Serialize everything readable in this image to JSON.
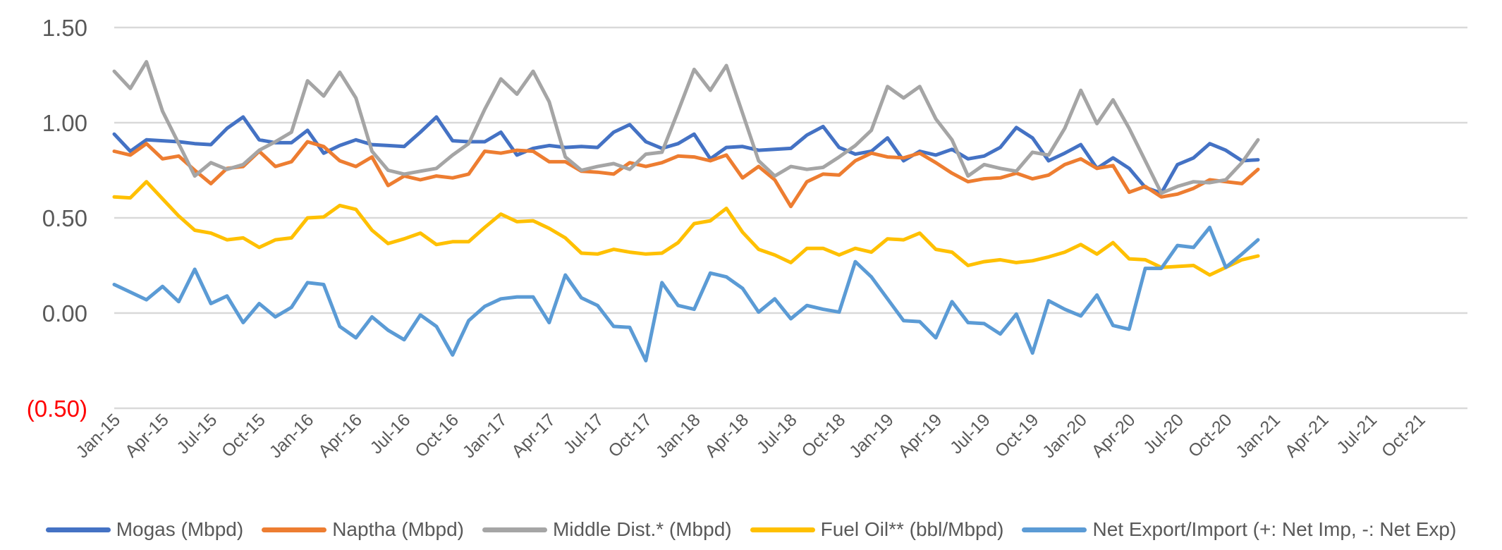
{
  "chart_data": {
    "type": "line",
    "title": "",
    "xlabel": "",
    "ylabel": "",
    "ylim": [
      -0.5,
      1.5
    ],
    "yticks": [
      {
        "value": 1.5,
        "label": "1.50"
      },
      {
        "value": 1.0,
        "label": "1.00"
      },
      {
        "value": 0.5,
        "label": "0.50"
      },
      {
        "value": 0.0,
        "label": "0.00"
      },
      {
        "value": -0.5,
        "label": "(0.50)"
      }
    ],
    "negative_tick_color": "#ff0000",
    "grid": true,
    "legend_position": "bottom",
    "x_axis_months_total": 84,
    "x_tick_labels": [
      "Jan-15",
      "Apr-15",
      "Jul-15",
      "Oct-15",
      "Jan-16",
      "Apr-16",
      "Jul-16",
      "Oct-16",
      "Jan-17",
      "Apr-17",
      "Jul-17",
      "Oct-17",
      "Jan-18",
      "Apr-18",
      "Jul-18",
      "Oct-18",
      "Jan-19",
      "Apr-19",
      "Jul-19",
      "Oct-19",
      "Jan-20",
      "Apr-20",
      "Jul-20",
      "Oct-20",
      "Jan-21",
      "Apr-21",
      "Jul-21",
      "Oct-21"
    ],
    "x_start": "Jan-15",
    "x_end_data": "Dec-20",
    "series": [
      {
        "name": "Mogas (Mbpd)",
        "color": "#4472c4",
        "values": [
          0.94,
          0.85,
          0.91,
          0.905,
          0.9,
          0.89,
          0.885,
          0.97,
          1.03,
          0.91,
          0.895,
          0.895,
          0.96,
          0.84,
          0.88,
          0.91,
          0.885,
          0.88,
          0.875,
          0.95,
          1.03,
          0.905,
          0.9,
          0.9,
          0.95,
          0.83,
          0.865,
          0.88,
          0.87,
          0.875,
          0.87,
          0.95,
          0.99,
          0.9,
          0.865,
          0.89,
          0.94,
          0.81,
          0.87,
          0.875,
          0.855,
          0.86,
          0.865,
          0.935,
          0.98,
          0.87,
          0.835,
          0.85,
          0.92,
          0.8,
          0.85,
          0.83,
          0.86,
          0.81,
          0.825,
          0.87,
          0.975,
          0.92,
          0.8,
          0.84,
          0.885,
          0.76,
          0.815,
          0.76,
          0.66,
          0.63,
          0.78,
          0.815,
          0.89,
          0.855,
          0.8,
          0.805
        ]
      },
      {
        "name": "Naptha (Mbpd)",
        "color": "#ed7d31",
        "values": [
          0.85,
          0.83,
          0.89,
          0.81,
          0.825,
          0.75,
          0.68,
          0.76,
          0.77,
          0.85,
          0.77,
          0.795,
          0.9,
          0.875,
          0.8,
          0.77,
          0.82,
          0.67,
          0.72,
          0.7,
          0.72,
          0.71,
          0.73,
          0.85,
          0.84,
          0.855,
          0.85,
          0.795,
          0.795,
          0.745,
          0.74,
          0.73,
          0.79,
          0.77,
          0.79,
          0.825,
          0.82,
          0.8,
          0.83,
          0.71,
          0.77,
          0.7,
          0.56,
          0.69,
          0.73,
          0.725,
          0.8,
          0.84,
          0.82,
          0.815,
          0.84,
          0.79,
          0.735,
          0.69,
          0.705,
          0.71,
          0.735,
          0.705,
          0.725,
          0.78,
          0.81,
          0.76,
          0.775,
          0.635,
          0.665,
          0.61,
          0.625,
          0.655,
          0.7,
          0.69,
          0.68,
          0.755
        ]
      },
      {
        "name": "Middle Dist.* (Mbpd)",
        "color": "#a5a5a5",
        "values": [
          1.27,
          1.18,
          1.32,
          1.06,
          0.89,
          0.72,
          0.79,
          0.755,
          0.78,
          0.855,
          0.9,
          0.95,
          1.22,
          1.14,
          1.265,
          1.13,
          0.85,
          0.75,
          0.73,
          0.745,
          0.76,
          0.83,
          0.89,
          1.07,
          1.23,
          1.15,
          1.27,
          1.11,
          0.82,
          0.75,
          0.77,
          0.785,
          0.755,
          0.835,
          0.845,
          1.06,
          1.28,
          1.17,
          1.3,
          1.05,
          0.8,
          0.72,
          0.77,
          0.755,
          0.765,
          0.82,
          0.88,
          0.96,
          1.19,
          1.13,
          1.19,
          1.02,
          0.91,
          0.72,
          0.78,
          0.76,
          0.745,
          0.845,
          0.83,
          0.97,
          1.17,
          0.995,
          1.12,
          0.97,
          0.8,
          0.63,
          0.665,
          0.69,
          0.685,
          0.7,
          0.79,
          0.91
        ]
      },
      {
        "name": "Fuel Oil** (bbl/Mbpd)",
        "color": "#ffc000",
        "values": [
          0.61,
          0.605,
          0.69,
          0.6,
          0.51,
          0.435,
          0.42,
          0.385,
          0.395,
          0.345,
          0.385,
          0.395,
          0.5,
          0.505,
          0.565,
          0.545,
          0.435,
          0.365,
          0.39,
          0.42,
          0.36,
          0.375,
          0.375,
          0.45,
          0.52,
          0.48,
          0.485,
          0.445,
          0.395,
          0.315,
          0.31,
          0.335,
          0.32,
          0.31,
          0.315,
          0.37,
          0.47,
          0.485,
          0.55,
          0.425,
          0.335,
          0.305,
          0.265,
          0.34,
          0.34,
          0.305,
          0.34,
          0.32,
          0.39,
          0.385,
          0.42,
          0.335,
          0.32,
          0.25,
          0.27,
          0.28,
          0.265,
          0.275,
          0.295,
          0.32,
          0.36,
          0.31,
          0.37,
          0.285,
          0.28,
          0.24,
          0.245,
          0.25,
          0.2,
          0.24,
          0.28,
          0.3
        ]
      },
      {
        "name": "Net Export/Import (+: Net Imp, -: Net Exp)",
        "color": "#5b9bd5",
        "values": [
          0.15,
          0.11,
          0.07,
          0.14,
          0.06,
          0.23,
          0.05,
          0.09,
          -0.05,
          0.05,
          -0.02,
          0.03,
          0.16,
          0.15,
          -0.07,
          -0.13,
          -0.02,
          -0.09,
          -0.14,
          -0.01,
          -0.07,
          -0.22,
          -0.04,
          0.035,
          0.075,
          0.085,
          0.085,
          -0.05,
          0.2,
          0.08,
          0.04,
          -0.07,
          -0.075,
          -0.25,
          0.16,
          0.04,
          0.02,
          0.21,
          0.19,
          0.13,
          0.005,
          0.075,
          -0.03,
          0.04,
          0.02,
          0.005,
          0.27,
          0.19,
          0.075,
          -0.04,
          -0.045,
          -0.13,
          0.06,
          -0.05,
          -0.055,
          -0.11,
          -0.005,
          -0.21,
          0.065,
          0.02,
          -0.015,
          0.095,
          -0.065,
          -0.085,
          0.235,
          0.235,
          0.355,
          0.345,
          0.45,
          0.24,
          0.31,
          0.385
        ]
      }
    ]
  },
  "legend": {
    "items": [
      {
        "label": "Mogas (Mbpd)",
        "color": "#4472c4"
      },
      {
        "label": "Naptha (Mbpd)",
        "color": "#ed7d31"
      },
      {
        "label": "Middle Dist.* (Mbpd)",
        "color": "#a5a5a5"
      },
      {
        "label": "Fuel Oil** (bbl/Mbpd)",
        "color": "#ffc000"
      },
      {
        "label": "Net Export/Import (+: Net Imp, -: Net Exp)",
        "color": "#5b9bd5"
      }
    ]
  }
}
